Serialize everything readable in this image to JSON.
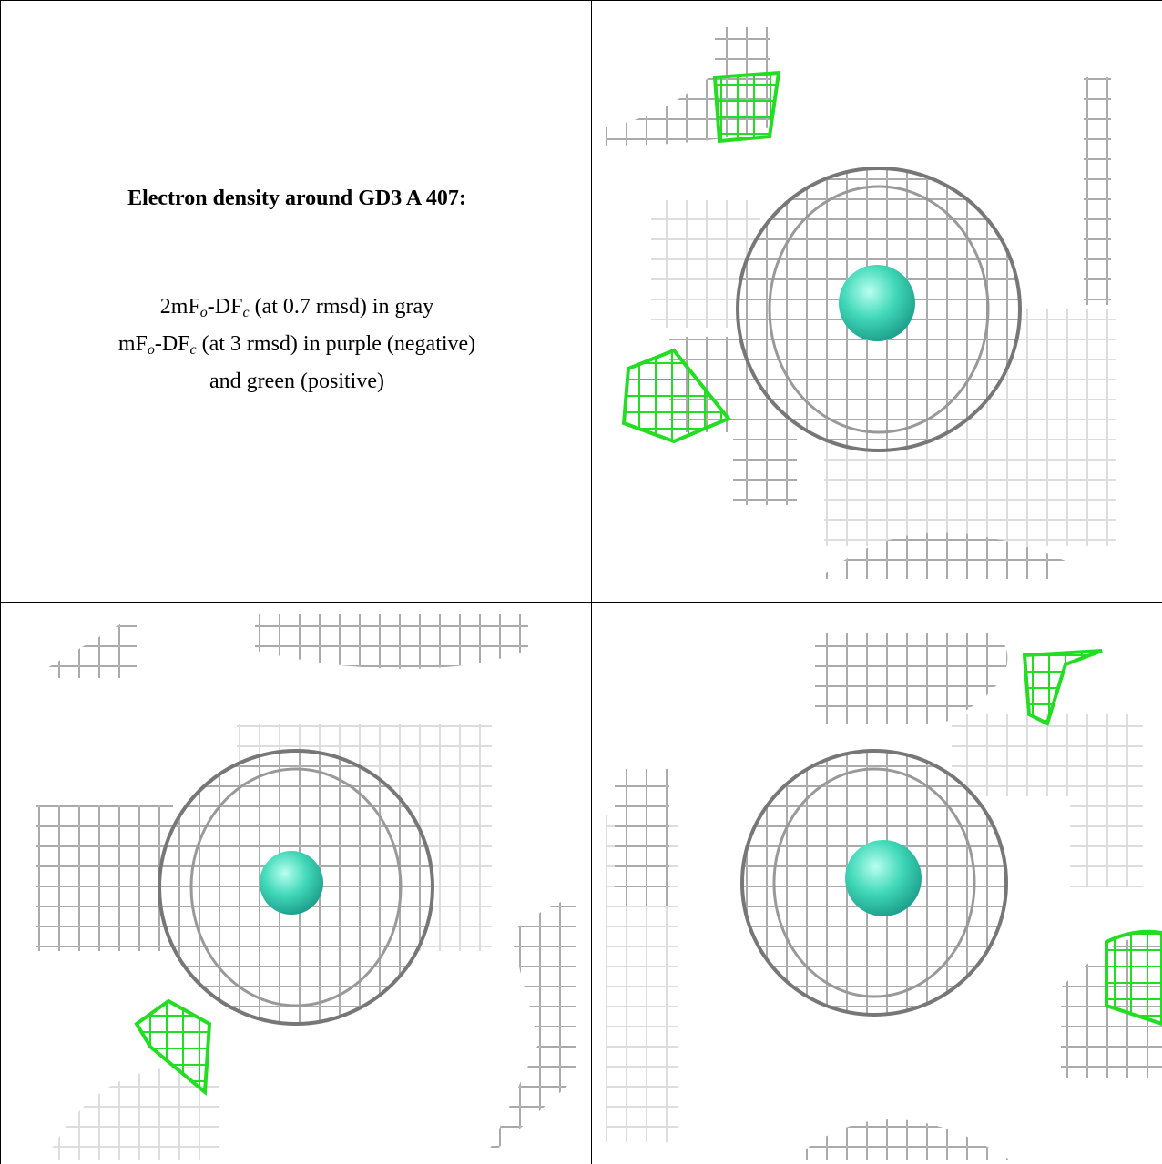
{
  "title": "Electron density around GD3 A 407:",
  "legend": [
    {
      "parts": [
        "2mF",
        "o",
        "-DF",
        "c",
        " (at 0.7 rmsd) in gray"
      ]
    },
    {
      "parts": [
        "mF",
        "o",
        "-DF",
        "c",
        " (at 3 rmsd) in purple (negative)"
      ]
    },
    {
      "parts": [
        "and green (positive)"
      ]
    }
  ]
}
